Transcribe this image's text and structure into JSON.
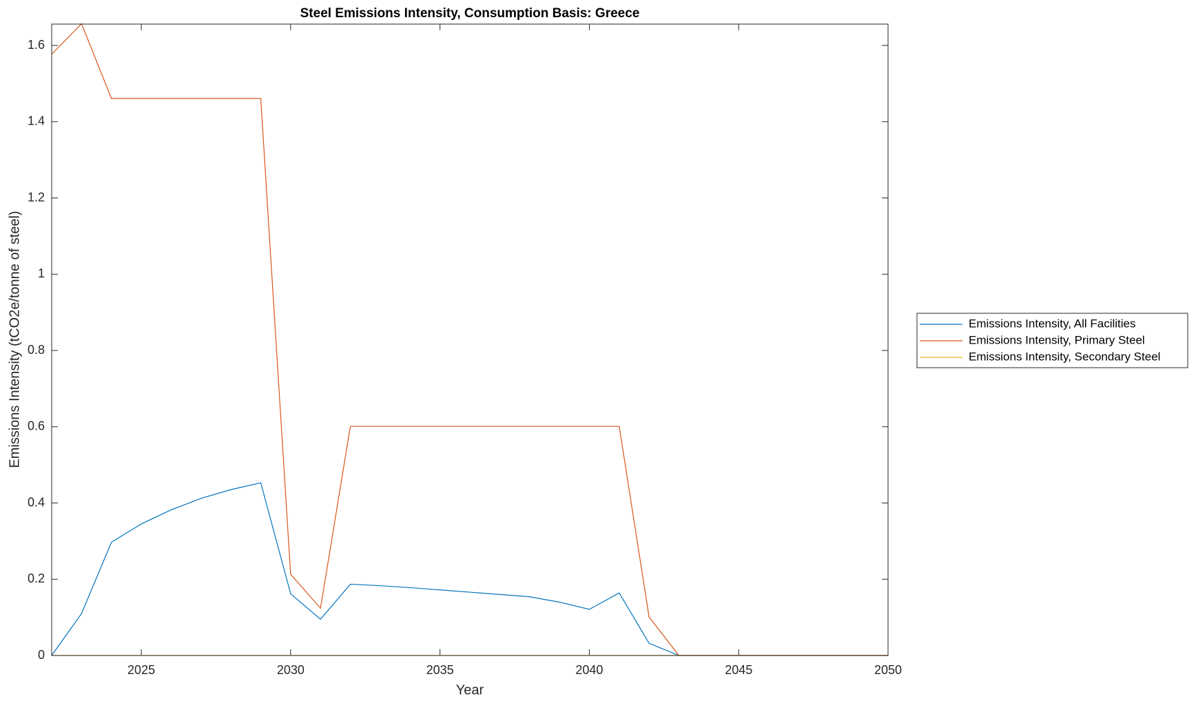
{
  "chart_data": {
    "type": "line",
    "title": "Steel Emissions Intensity, Consumption Basis: Greece",
    "xlabel": "Year",
    "ylabel": "Emissions Intensity (tCO2e/tonne of steel)",
    "x": [
      2022,
      2023,
      2024,
      2025,
      2026,
      2027,
      2028,
      2029,
      2030,
      2031,
      2032,
      2033,
      2034,
      2035,
      2036,
      2037,
      2038,
      2039,
      2040,
      2041,
      2042,
      2043,
      2044,
      2045,
      2046,
      2047,
      2048,
      2049,
      2050
    ],
    "series": [
      {
        "name": "Emissions Intensity, All Facilities",
        "color": "#0072BD",
        "values": [
          0,
          0.11,
          0.297,
          0.345,
          0.382,
          0.412,
          0.435,
          0.453,
          0.162,
          0.095,
          0.187,
          0.183,
          0.178,
          0.172,
          0.166,
          0.16,
          0.154,
          0.14,
          0.121,
          0.164,
          0.032,
          0,
          0,
          0,
          0,
          0,
          0,
          0,
          0
        ]
      },
      {
        "name": "Emissions Intensity, Primary Steel",
        "color": "#D95319",
        "values": [
          1.577,
          1.657,
          1.461,
          1.461,
          1.461,
          1.461,
          1.461,
          1.461,
          0.213,
          0.124,
          0.601,
          0.601,
          0.601,
          0.601,
          0.601,
          0.601,
          0.601,
          0.601,
          0.601,
          0.601,
          0.101,
          0,
          0,
          0,
          0,
          0,
          0,
          0,
          0
        ]
      },
      {
        "name": "Emissions Intensity, Secondary Steel",
        "color": "#EDB120",
        "values": [
          0,
          0,
          0,
          0,
          0,
          0,
          0,
          0,
          0,
          0,
          0,
          0,
          0,
          0,
          0,
          0,
          0,
          0,
          0,
          0,
          0,
          0,
          0,
          0,
          0,
          0,
          0,
          0,
          0
        ]
      }
    ],
    "xlim": [
      2022,
      2050
    ],
    "xticks": [
      2025,
      2030,
      2035,
      2040,
      2045,
      2050
    ],
    "ylim": [
      0,
      1.656
    ],
    "yticks": [
      0,
      0.2,
      0.4,
      0.6,
      0.8,
      1,
      1.2,
      1.4,
      1.6
    ],
    "legend": "right"
  }
}
